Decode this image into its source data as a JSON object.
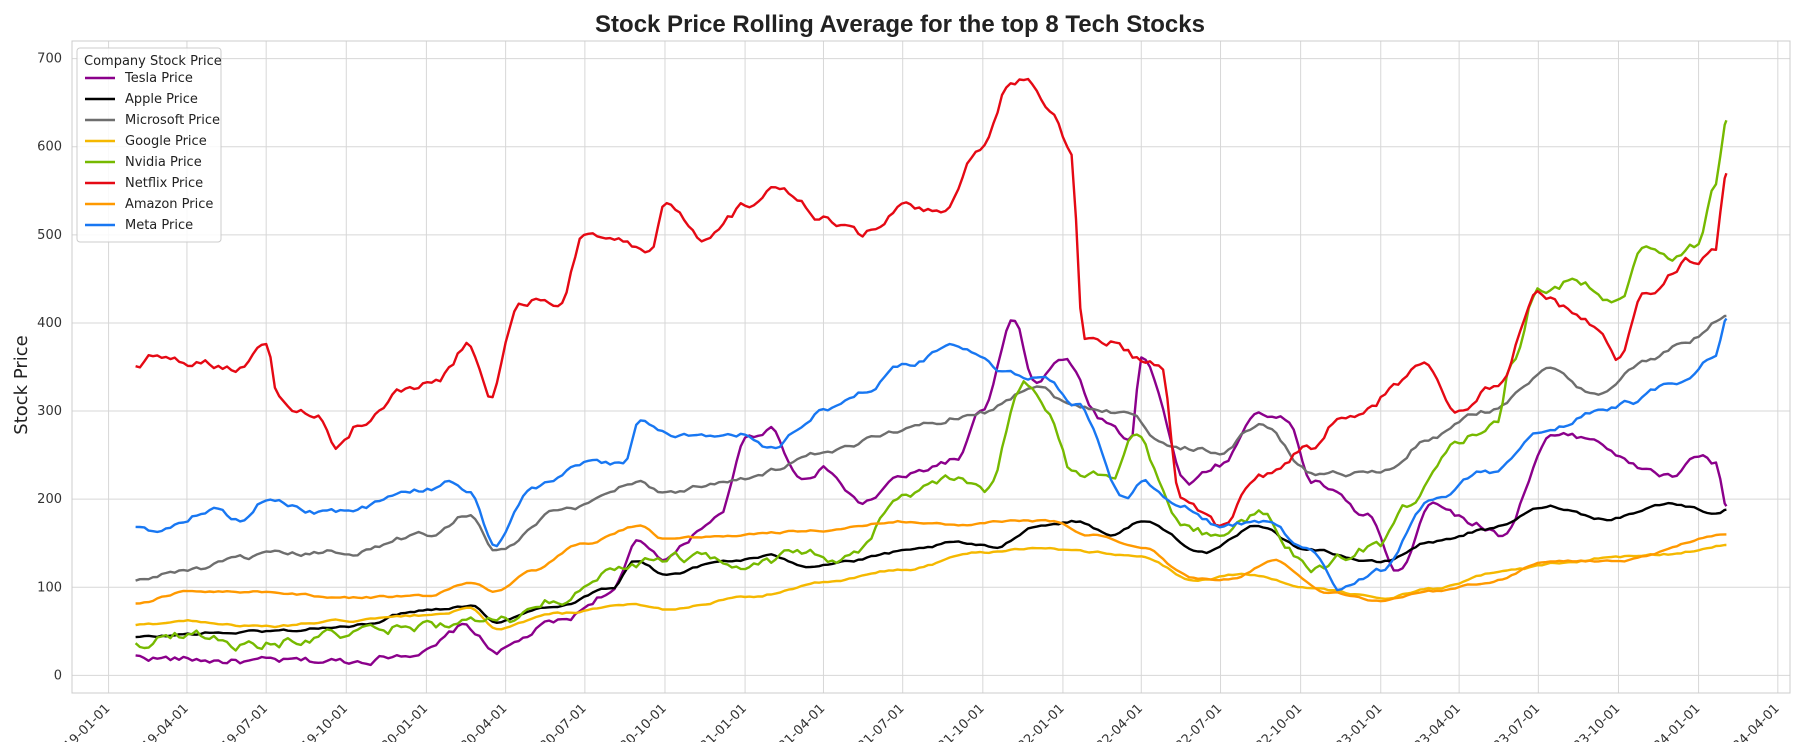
{
  "chart_data": {
    "type": "line",
    "title": "Stock Price Rolling Average for the top 8 Tech Stocks",
    "xlabel": "",
    "ylabel": "Stock Price",
    "ylim": [
      -20,
      720
    ],
    "yticks": [
      0,
      100,
      200,
      300,
      400,
      500,
      600,
      700
    ],
    "x_ticks": [
      "2019-01-01",
      "2019-04-01",
      "2019-07-01",
      "2019-10-01",
      "2020-01-01",
      "2020-04-01",
      "2020-07-01",
      "2020-10-01",
      "2021-01-01",
      "2021-04-01",
      "2021-07-01",
      "2021-10-01",
      "2022-01-01",
      "2022-04-01",
      "2022-07-01",
      "2022-10-01",
      "2023-01-01",
      "2023-04-01",
      "2023-07-01",
      "2023-10-01",
      "2024-01-01",
      "2024-04-01"
    ],
    "x_tick_labels": [
      "19-01-01",
      "19-04-01",
      "19-07-01",
      "19-10-01",
      "20-01-01",
      "20-04-01",
      "20-07-01",
      "20-10-01",
      "21-01-01",
      "21-04-01",
      "21-07-01",
      "21-10-01",
      "22-01-01",
      "22-04-01",
      "22-07-01",
      "22-10-01",
      "23-01-01",
      "23-04-01",
      "23-07-01",
      "23-10-01",
      "24-01-01",
      "24-04-01"
    ],
    "xlim": [
      "2018-11-20",
      "2024-04-15"
    ],
    "grid": true,
    "legend": {
      "title": "Company Stock Price",
      "placement": "top-left"
    },
    "series": [
      {
        "name": "Tesla Price",
        "color": "#8b008b",
        "dates": [
          "2019-02-01",
          "2019-04-01",
          "2019-07-01",
          "2019-10-01",
          "2020-01-01",
          "2020-02-15",
          "2020-03-20",
          "2020-06-01",
          "2020-08-01",
          "2020-09-01",
          "2020-10-01",
          "2020-12-01",
          "2021-01-05",
          "2021-02-01",
          "2021-03-05",
          "2021-04-01",
          "2021-05-15",
          "2021-07-01",
          "2021-09-01",
          "2021-10-01",
          "2021-11-05",
          "2021-12-01",
          "2022-01-01",
          "2022-02-15",
          "2022-03-20",
          "2022-04-01",
          "2022-05-25",
          "2022-07-01",
          "2022-08-15",
          "2022-09-15",
          "2022-10-15",
          "2022-12-20",
          "2023-01-20",
          "2023-03-01",
          "2023-04-15",
          "2023-05-20",
          "2023-07-15",
          "2023-09-01",
          "2023-10-25",
          "2023-12-01",
          "2024-01-01",
          "2024-01-20",
          "2024-02-02"
        ],
        "values": [
          21,
          18,
          15,
          16,
          28,
          55,
          28,
          60,
          95,
          150,
          135,
          180,
          270,
          280,
          225,
          235,
          195,
          225,
          245,
          300,
          400,
          330,
          360,
          290,
          270,
          365,
          220,
          240,
          300,
          290,
          220,
          180,
          115,
          200,
          175,
          160,
          270,
          270,
          235,
          225,
          250,
          240,
          192
        ]
      },
      {
        "name": "Apple Price",
        "color": "#000000",
        "dates": [
          "2019-02-01",
          "2019-05-01",
          "2019-07-01",
          "2019-10-01",
          "2020-01-01",
          "2020-02-20",
          "2020-03-20",
          "2020-06-01",
          "2020-08-01",
          "2020-08-28",
          "2020-10-01",
          "2020-12-15",
          "2021-02-01",
          "2021-03-15",
          "2021-05-01",
          "2021-07-01",
          "2021-09-01",
          "2021-10-15",
          "2021-12-01",
          "2022-01-15",
          "2022-03-01",
          "2022-04-01",
          "2022-06-15",
          "2022-08-15",
          "2022-10-01",
          "2023-01-01",
          "2023-03-01",
          "2023-05-01",
          "2023-07-15",
          "2023-09-15",
          "2023-12-01",
          "2024-01-20",
          "2024-02-02"
        ],
        "values": [
          43,
          48,
          50,
          55,
          75,
          80,
          62,
          80,
          100,
          130,
          115,
          130,
          135,
          125,
          130,
          140,
          150,
          145,
          170,
          175,
          160,
          175,
          140,
          170,
          145,
          128,
          152,
          165,
          192,
          178,
          195,
          185,
          188
        ]
      },
      {
        "name": "Microsoft Price",
        "color": "#6e6e6e",
        "dates": [
          "2019-02-01",
          "2019-04-01",
          "2019-07-01",
          "2019-10-01",
          "2020-01-01",
          "2020-02-20",
          "2020-03-20",
          "2020-06-01",
          "2020-09-01",
          "2020-10-01",
          "2021-01-01",
          "2021-04-01",
          "2021-07-01",
          "2021-10-01",
          "2021-12-01",
          "2022-01-15",
          "2022-03-15",
          "2022-05-01",
          "2022-07-01",
          "2022-08-15",
          "2022-10-15",
          "2023-01-01",
          "2023-03-01",
          "2023-05-01",
          "2023-07-15",
          "2023-09-01",
          "2023-11-01",
          "2023-12-15",
          "2024-02-02"
        ],
        "values": [
          107,
          120,
          135,
          140,
          160,
          185,
          140,
          185,
          220,
          208,
          225,
          250,
          280,
          300,
          330,
          305,
          300,
          260,
          255,
          285,
          230,
          230,
          270,
          300,
          345,
          320,
          355,
          375,
          408
        ]
      },
      {
        "name": "Google Price",
        "color": "#f5b800",
        "dates": [
          "2019-02-01",
          "2019-04-01",
          "2019-07-01",
          "2019-10-01",
          "2020-01-01",
          "2020-02-20",
          "2020-03-20",
          "2020-06-01",
          "2020-09-01",
          "2020-10-01",
          "2021-01-01",
          "2021-04-01",
          "2021-07-01",
          "2021-10-01",
          "2021-12-01",
          "2022-02-01",
          "2022-04-01",
          "2022-06-01",
          "2022-08-01",
          "2022-10-15",
          "2023-01-01",
          "2023-03-01",
          "2023-06-01",
          "2023-08-01",
          "2023-10-01",
          "2023-12-01",
          "2024-02-02"
        ],
        "values": [
          57,
          62,
          55,
          62,
          68,
          75,
          53,
          70,
          80,
          75,
          88,
          105,
          120,
          140,
          145,
          140,
          135,
          108,
          115,
          98,
          88,
          98,
          120,
          128,
          135,
          138,
          148
        ]
      },
      {
        "name": "Nvidia Price",
        "color": "#76b900",
        "dates": [
          "2019-02-01",
          "2019-04-01",
          "2019-06-01",
          "2019-10-01",
          "2020-01-01",
          "2020-02-20",
          "2020-03-20",
          "2020-06-01",
          "2020-09-01",
          "2020-10-01",
          "2021-01-01",
          "2021-03-01",
          "2021-05-01",
          "2021-07-01",
          "2021-09-01",
          "2021-10-01",
          "2021-11-20",
          "2021-12-15",
          "2022-01-15",
          "2022-03-01",
          "2022-03-25",
          "2022-05-15",
          "2022-07-01",
          "2022-08-15",
          "2022-10-15",
          "2023-01-01",
          "2023-02-01",
          "2023-04-01",
          "2023-05-15",
          "2023-06-01",
          "2023-07-01",
          "2023-08-15",
          "2023-10-01",
          "2023-11-01",
          "2023-12-01",
          "2024-01-01",
          "2024-01-20",
          "2024-02-02"
        ],
        "values": [
          37,
          48,
          36,
          45,
          57,
          60,
          57,
          85,
          130,
          135,
          130,
          135,
          130,
          200,
          220,
          210,
          330,
          300,
          230,
          230,
          280,
          170,
          160,
          180,
          120,
          150,
          190,
          270,
          280,
          350,
          440,
          450,
          420,
          490,
          470,
          490,
          550,
          630
        ]
      },
      {
        "name": "Netflix Price",
        "color": "#e50914",
        "dates": [
          "2019-02-01",
          "2019-03-01",
          "2019-05-01",
          "2019-06-01",
          "2019-07-01",
          "2019-07-15",
          "2019-09-01",
          "2019-09-20",
          "2019-10-15",
          "2019-12-01",
          "2020-01-15",
          "2020-02-20",
          "2020-03-15",
          "2020-04-15",
          "2020-05-15",
          "2020-06-01",
          "2020-07-01",
          "2020-08-15",
          "2020-09-15",
          "2020-10-01",
          "2020-11-15",
          "2021-01-01",
          "2021-02-01",
          "2021-04-01",
          "2021-05-15",
          "2021-07-01",
          "2021-08-15",
          "2021-10-01",
          "2021-11-01",
          "2021-11-20",
          "2021-12-15",
          "2022-01-10",
          "2022-01-25",
          "2022-03-01",
          "2022-04-01",
          "2022-04-25",
          "2022-05-15",
          "2022-07-01",
          "2022-08-15",
          "2022-10-15",
          "2022-11-15",
          "2022-12-20",
          "2023-01-20",
          "2023-02-15",
          "2023-04-01",
          "2023-05-15",
          "2023-07-01",
          "2023-09-01",
          "2023-10-01",
          "2023-11-01",
          "2023-12-20",
          "2024-01-20",
          "2024-02-02"
        ],
        "values": [
          352,
          365,
          355,
          350,
          380,
          315,
          290,
          265,
          285,
          320,
          340,
          375,
          320,
          420,
          430,
          420,
          500,
          490,
          480,
          530,
          490,
          530,
          550,
          520,
          500,
          530,
          520,
          600,
          670,
          680,
          640,
          600,
          380,
          380,
          360,
          350,
          200,
          170,
          230,
          260,
          290,
          300,
          330,
          360,
          300,
          330,
          430,
          400,
          360,
          430,
          470,
          480,
          570
        ]
      },
      {
        "name": "Amazon Price",
        "color": "#ff9900",
        "dates": [
          "2019-02-01",
          "2019-04-01",
          "2019-07-01",
          "2019-10-01",
          "2020-01-01",
          "2020-02-20",
          "2020-03-20",
          "2020-05-01",
          "2020-07-01",
          "2020-09-01",
          "2020-10-01",
          "2021-01-01",
          "2021-04-01",
          "2021-07-01",
          "2021-09-01",
          "2021-11-01",
          "2021-12-20",
          "2022-02-01",
          "2022-04-01",
          "2022-06-01",
          "2022-07-15",
          "2022-09-01",
          "2022-11-01",
          "2023-01-01",
          "2023-03-01",
          "2023-05-01",
          "2023-07-15",
          "2023-10-01",
          "2024-02-02"
        ],
        "values": [
          82,
          95,
          95,
          88,
          90,
          105,
          95,
          120,
          150,
          170,
          155,
          160,
          165,
          175,
          170,
          175,
          175,
          160,
          145,
          110,
          110,
          130,
          95,
          85,
          95,
          105,
          130,
          130,
          160
        ]
      },
      {
        "name": "Meta Price",
        "color": "#1877f2",
        "dates": [
          "2019-02-01",
          "2019-03-01",
          "2019-05-01",
          "2019-06-01",
          "2019-07-01",
          "2019-09-01",
          "2019-10-01",
          "2020-01-01",
          "2020-02-01",
          "2020-02-20",
          "2020-03-20",
          "2020-05-01",
          "2020-07-01",
          "2020-08-15",
          "2020-09-01",
          "2020-10-15",
          "2021-01-01",
          "2021-02-01",
          "2021-04-01",
          "2021-05-15",
          "2021-07-01",
          "2021-09-01",
          "2021-11-01",
          "2021-12-15",
          "2022-01-15",
          "2022-03-15",
          "2022-04-01",
          "2022-05-15",
          "2022-07-01",
          "2022-08-15",
          "2022-10-15",
          "2022-11-15",
          "2023-01-01",
          "2023-03-01",
          "2023-05-01",
          "2023-07-15",
          "2023-09-01",
          "2023-10-15",
          "2023-12-01",
          "2024-01-20",
          "2024-02-02"
        ],
        "values": [
          170,
          165,
          190,
          175,
          200,
          185,
          185,
          210,
          220,
          210,
          150,
          210,
          240,
          240,
          290,
          270,
          275,
          260,
          300,
          320,
          350,
          375,
          340,
          335,
          310,
          200,
          220,
          190,
          170,
          175,
          140,
          95,
          120,
          200,
          230,
          280,
          300,
          310,
          330,
          360,
          405
        ]
      }
    ]
  }
}
